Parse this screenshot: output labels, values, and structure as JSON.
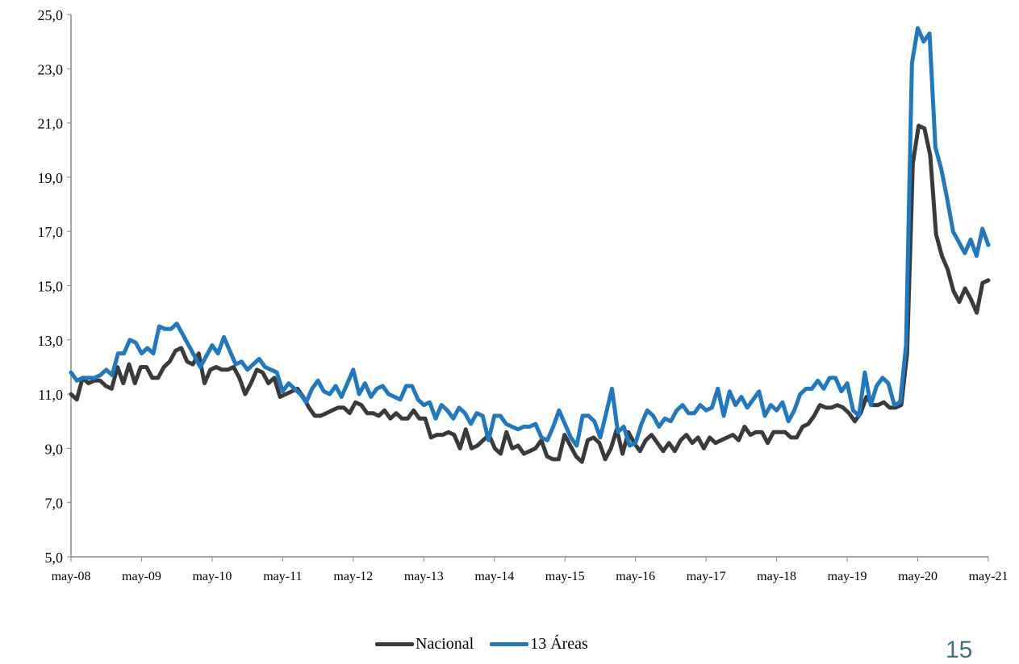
{
  "page_number": "15",
  "chart_data": {
    "type": "line",
    "ylim": [
      5,
      25
    ],
    "yticks": [
      "5,0",
      "7,0",
      "9,0",
      "11,0",
      "13,0",
      "15,0",
      "17,0",
      "19,0",
      "21,0",
      "23,0",
      "25,0"
    ],
    "xticks": [
      "may-08",
      "may-09",
      "may-10",
      "may-11",
      "may-12",
      "may-13",
      "may-14",
      "may-15",
      "may-16",
      "may-17",
      "may-18",
      "may-19",
      "may-20",
      "may-21"
    ],
    "legend_position": "bottom",
    "x_start": "may-08",
    "x_end": "may-21",
    "series": [
      {
        "name": "Nacional",
        "color": "#3a3a3a",
        "values": [
          11.0,
          10.8,
          11.6,
          11.4,
          11.5,
          11.5,
          11.3,
          11.2,
          12.0,
          11.4,
          12.1,
          11.4,
          12.0,
          12.0,
          11.6,
          11.6,
          12.0,
          12.2,
          12.6,
          12.7,
          12.2,
          12.1,
          12.5,
          11.4,
          11.9,
          12.0,
          11.9,
          11.9,
          12.0,
          11.6,
          11.0,
          11.4,
          11.9,
          11.8,
          11.4,
          11.6,
          10.9,
          11.0,
          11.1,
          11.2,
          10.9,
          10.5,
          10.2,
          10.2,
          10.3,
          10.4,
          10.5,
          10.5,
          10.3,
          10.7,
          10.6,
          10.3,
          10.3,
          10.2,
          10.4,
          10.1,
          10.3,
          10.1,
          10.1,
          10.4,
          10.1,
          10.1,
          9.4,
          9.5,
          9.5,
          9.6,
          9.5,
          9.0,
          9.7,
          9.0,
          9.1,
          9.3,
          9.5,
          9.0,
          8.8,
          9.6,
          9.0,
          9.1,
          8.8,
          8.9,
          9.0,
          9.3,
          8.7,
          8.6,
          8.6,
          9.5,
          9.1,
          8.7,
          8.5,
          9.3,
          9.4,
          9.2,
          8.6,
          9.0,
          9.7,
          8.8,
          9.6,
          9.2,
          8.9,
          9.3,
          9.5,
          9.2,
          8.9,
          9.2,
          8.9,
          9.3,
          9.5,
          9.2,
          9.4,
          9.0,
          9.4,
          9.2,
          9.3,
          9.4,
          9.5,
          9.3,
          9.8,
          9.5,
          9.6,
          9.6,
          9.2,
          9.6,
          9.6,
          9.6,
          9.4,
          9.4,
          9.8,
          9.9,
          10.2,
          10.6,
          10.5,
          10.5,
          10.6,
          10.5,
          10.3,
          10.0,
          10.3,
          10.9,
          10.6,
          10.6,
          10.7,
          10.5,
          10.5,
          10.6,
          12.5,
          19.5,
          20.9,
          20.8,
          19.8,
          16.9,
          16.1,
          15.6,
          14.8,
          14.4,
          14.9,
          14.5,
          14.0,
          15.1,
          15.2
        ]
      },
      {
        "name": "13 Áreas",
        "color": "#1f78c1",
        "values": [
          11.8,
          11.5,
          11.6,
          11.6,
          11.6,
          11.7,
          11.9,
          11.7,
          12.5,
          12.5,
          13.0,
          12.9,
          12.5,
          12.7,
          12.5,
          13.5,
          13.4,
          13.4,
          13.6,
          13.2,
          12.8,
          12.4,
          12.0,
          12.4,
          12.8,
          12.5,
          13.1,
          12.6,
          12.1,
          12.2,
          11.9,
          12.1,
          12.3,
          12.0,
          11.9,
          11.8,
          11.1,
          11.4,
          11.2,
          11.0,
          10.7,
          11.2,
          11.5,
          11.1,
          11.0,
          11.3,
          10.9,
          11.4,
          11.9,
          11.0,
          11.4,
          10.9,
          11.2,
          11.3,
          11.0,
          10.9,
          10.8,
          11.3,
          11.3,
          10.8,
          10.6,
          10.7,
          10.1,
          10.6,
          10.4,
          10.1,
          10.5,
          10.3,
          9.9,
          10.3,
          10.2,
          9.3,
          10.2,
          10.2,
          9.9,
          9.8,
          9.7,
          9.8,
          9.8,
          9.9,
          9.4,
          9.3,
          9.8,
          10.4,
          9.9,
          9.4,
          9.1,
          10.2,
          10.2,
          10.0,
          9.4,
          10.3,
          11.2,
          9.6,
          9.8,
          9.1,
          9.2,
          9.9,
          10.4,
          10.2,
          9.8,
          10.1,
          10.0,
          10.4,
          10.6,
          10.3,
          10.3,
          10.6,
          10.4,
          10.5,
          11.2,
          10.2,
          11.1,
          10.6,
          10.9,
          10.5,
          10.8,
          11.1,
          10.2,
          10.6,
          10.4,
          10.7,
          10.0,
          10.4,
          11.0,
          11.2,
          11.2,
          11.5,
          11.2,
          11.6,
          11.6,
          11.1,
          11.4,
          10.4,
          10.2,
          11.8,
          10.6,
          11.3,
          11.6,
          11.4,
          10.6,
          10.7,
          12.8,
          23.2,
          24.5,
          24.0,
          24.3,
          20.1,
          19.3,
          18.2,
          17.0,
          16.6,
          16.2,
          16.7,
          16.1,
          17.1,
          16.5
        ]
      }
    ]
  }
}
